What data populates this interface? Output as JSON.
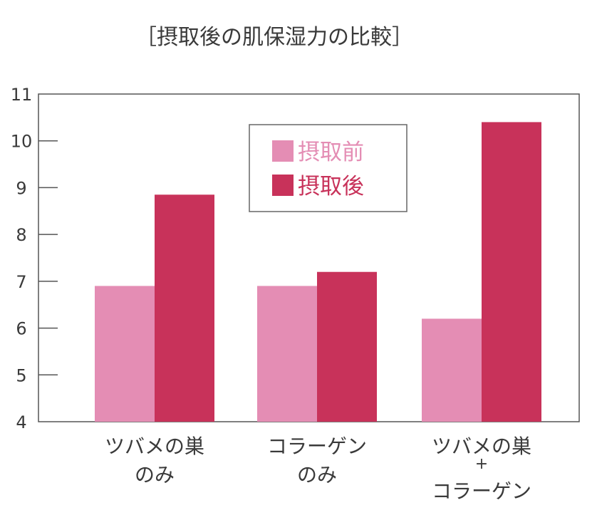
{
  "chart_data": {
    "type": "bar",
    "title": "［摂取後の肌保湿力の比較］",
    "categories": [
      [
        "ツバメの巣",
        "のみ"
      ],
      [
        "コラーゲン",
        "のみ"
      ],
      [
        "ツバメの巣",
        "+",
        "コラーゲン"
      ]
    ],
    "series": [
      {
        "name": "摂取前",
        "color": "#e48db4",
        "values": [
          6.9,
          6.9,
          6.2
        ]
      },
      {
        "name": "摂取後",
        "color": "#c8325a",
        "values": [
          8.85,
          7.2,
          10.4
        ]
      }
    ],
    "ylim": [
      4,
      11
    ],
    "yticks": [
      "4",
      "5",
      "6",
      "7",
      "8",
      "9",
      "10",
      "11"
    ],
    "legend_position": "top-center"
  }
}
